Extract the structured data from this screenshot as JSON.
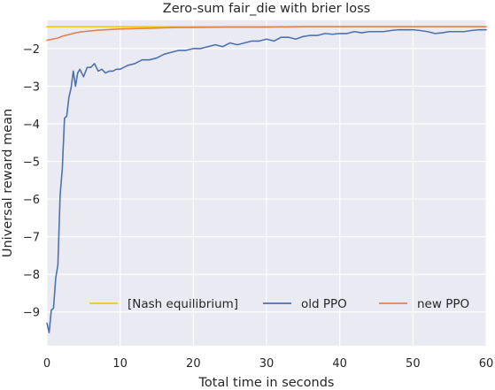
{
  "chart_data": {
    "type": "line",
    "title": "Zero-sum fair_die with brier loss",
    "xlabel": "Total time in seconds",
    "ylabel": "Universal reward mean",
    "xlim": [
      0,
      60
    ],
    "ylim": [
      -9.9,
      -1.25
    ],
    "xticks": [
      0,
      10,
      20,
      30,
      40,
      50,
      60
    ],
    "yticks": [
      -2,
      -3,
      -4,
      -5,
      -6,
      -7,
      -8,
      -9
    ],
    "grid": true,
    "legend_position": "lower-right",
    "series": [
      {
        "name": "[Nash equilibrium]",
        "color": "#f5c518",
        "x": [
          0,
          60
        ],
        "y": [
          -1.42,
          -1.42
        ]
      },
      {
        "name": "old PPO",
        "color": "#4c72b0",
        "x": [
          0,
          0.3,
          0.6,
          0.9,
          1.2,
          1.5,
          1.8,
          2.1,
          2.4,
          2.7,
          3.0,
          3.3,
          3.6,
          3.9,
          4.2,
          4.5,
          5.0,
          5.5,
          6.0,
          6.5,
          7.0,
          7.5,
          8.0,
          8.5,
          9.0,
          9.5,
          10,
          11,
          12,
          13,
          14,
          15,
          16,
          17,
          18,
          19,
          20,
          21,
          22,
          23,
          24,
          25,
          26,
          27,
          28,
          29,
          30,
          31,
          32,
          33,
          34,
          35,
          36,
          37,
          38,
          39,
          40,
          41,
          42,
          43,
          44,
          45,
          46,
          47,
          48,
          49,
          50,
          51,
          52,
          53,
          54,
          55,
          56,
          57,
          58,
          59,
          60
        ],
        "y": [
          -9.3,
          -9.55,
          -8.95,
          -8.9,
          -8.1,
          -7.75,
          -5.9,
          -5.2,
          -3.85,
          -3.8,
          -3.3,
          -3.05,
          -2.6,
          -3.0,
          -2.65,
          -2.55,
          -2.75,
          -2.5,
          -2.5,
          -2.4,
          -2.6,
          -2.55,
          -2.65,
          -2.6,
          -2.6,
          -2.55,
          -2.55,
          -2.45,
          -2.4,
          -2.3,
          -2.3,
          -2.25,
          -2.15,
          -2.1,
          -2.05,
          -2.05,
          -2.0,
          -2.0,
          -1.95,
          -1.9,
          -1.95,
          -1.85,
          -1.9,
          -1.85,
          -1.8,
          -1.8,
          -1.75,
          -1.8,
          -1.7,
          -1.7,
          -1.75,
          -1.68,
          -1.65,
          -1.65,
          -1.6,
          -1.62,
          -1.6,
          -1.6,
          -1.55,
          -1.58,
          -1.55,
          -1.55,
          -1.55,
          -1.52,
          -1.5,
          -1.5,
          -1.5,
          -1.52,
          -1.55,
          -1.6,
          -1.58,
          -1.55,
          -1.55,
          -1.55,
          -1.52,
          -1.5,
          -1.5
        ]
      },
      {
        "name": "new PPO",
        "color": "#dd8452",
        "x": [
          0,
          0.5,
          1.0,
          1.5,
          2.0,
          2.5,
          3.0,
          3.5,
          4.0,
          4.5,
          5,
          6,
          7,
          8,
          9,
          10,
          12,
          14,
          16,
          18,
          20,
          25,
          30,
          35,
          40,
          45,
          50,
          55,
          60
        ],
        "y": [
          -1.78,
          -1.76,
          -1.74,
          -1.72,
          -1.68,
          -1.65,
          -1.63,
          -1.6,
          -1.58,
          -1.56,
          -1.55,
          -1.53,
          -1.51,
          -1.5,
          -1.49,
          -1.48,
          -1.47,
          -1.46,
          -1.45,
          -1.44,
          -1.44,
          -1.43,
          -1.43,
          -1.42,
          -1.42,
          -1.42,
          -1.42,
          -1.42,
          -1.42
        ]
      }
    ]
  }
}
